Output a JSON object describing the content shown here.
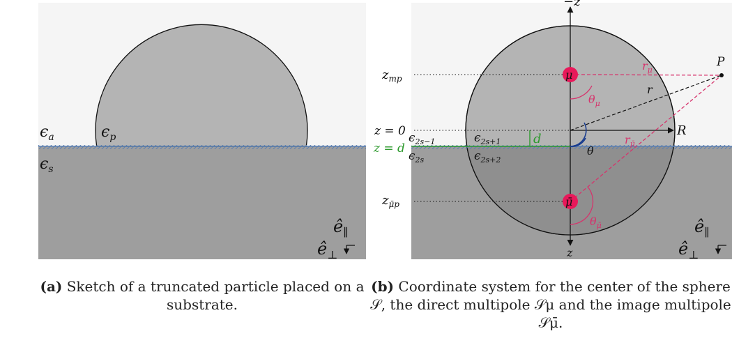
{
  "panel_a": {
    "labels": {
      "eps_a": "ϵ",
      "eps_a_sub": "a",
      "eps_p": "ϵ",
      "eps_p_sub": "p",
      "eps_s": "ϵ",
      "eps_s_sub": "s",
      "e_par": "ê",
      "e_par_sub": "∥",
      "e_perp": "ê",
      "e_perp_sub": "⊥"
    },
    "caption_tag": "(a)",
    "caption_text": "Sketch of a truncated particle placed on a substrate."
  },
  "panel_b": {
    "labels": {
      "minus_z": "−z",
      "z_axis": "z",
      "z_mp": "z",
      "z_mp_sub": "mp",
      "z_zero": "z = 0",
      "z_d": "z = d",
      "z_mbar_p": "z",
      "z_mbar_p_sub": "μ̄p",
      "eps_2s_minus_1": "ϵ",
      "eps_2s_minus_1_sub": "2s−1",
      "eps_2s_plus_1": "ϵ",
      "eps_2s_plus_1_sub": "2s+1",
      "eps_2s": "ϵ",
      "eps_2s_sub": "2s",
      "eps_2s_plus_2": "ϵ",
      "eps_2s_plus_2_sub": "2s+2",
      "d": "d",
      "R": "R",
      "P": "P",
      "r": "r",
      "r_mu": "r",
      "r_mu_sub": "μ",
      "r_mubar": "r",
      "r_mubar_sub": "μ̄",
      "theta": "θ",
      "theta_mu": "θ",
      "theta_mu_sub": "μ",
      "theta_mubar": "θ",
      "theta_mubar_sub": "μ̄",
      "mu": "μ",
      "mubar": "μ̄",
      "e_par": "ê",
      "e_par_sub": "∥",
      "e_perp": "ê",
      "e_perp_sub": "⊥"
    },
    "caption_tag": "(b)",
    "caption_text": "Coordinate system for the center of the sphere 𝒮, the direct multipole 𝒮μ and the image multipole 𝒮μ̄."
  },
  "colors": {
    "ambient": "#f5f5f5",
    "particle": "#b4b4b4",
    "substrate": "#9e9e9e",
    "particle_in_substrate": "#8f8f8f",
    "interface": "#5b7fb0",
    "multipole": "#e8185a",
    "annotation_pink": "#d6336c",
    "green": "#2e9a2e"
  }
}
